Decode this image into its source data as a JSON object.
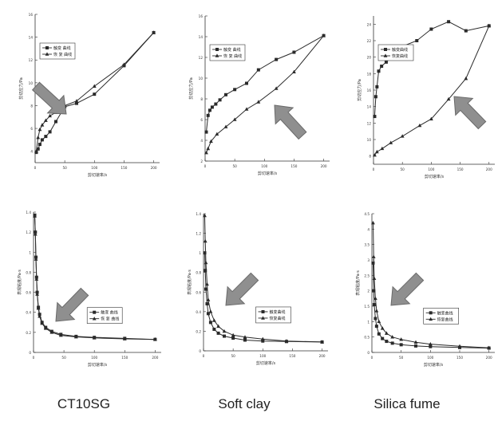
{
  "captions": [
    "CT10SG",
    "Soft clay",
    "Silica fume"
  ],
  "colors": {
    "curve": "#2a2a2a",
    "axis": "#333333",
    "arrow": "#8f8f8f",
    "arrow_edge": "#6a6a6a"
  },
  "chart_data": [
    {
      "type": "line",
      "xlabel": "剪切速率/s",
      "ylabel": "剪切应力/Pa",
      "xlim": [
        0,
        210
      ],
      "ylim": [
        3,
        16
      ],
      "xticks": [
        0,
        50,
        100,
        150,
        200
      ],
      "yticks": [
        4,
        6,
        8,
        10,
        12,
        14,
        16
      ],
      "legend": "top-left",
      "series": [
        {
          "name": "触变 曲线",
          "marker": "square",
          "x": [
            2,
            5,
            8,
            12,
            18,
            25,
            35,
            50,
            70,
            100,
            150,
            200
          ],
          "y": [
            3.9,
            4.2,
            4.6,
            5.0,
            5.3,
            5.7,
            6.6,
            7.9,
            8.2,
            9.0,
            11.5,
            14.4
          ]
        },
        {
          "name": "恢 复 曲线",
          "marker": "triangle",
          "x": [
            2,
            5,
            8,
            12,
            18,
            25,
            35,
            50,
            70,
            100,
            150,
            200
          ],
          "y": [
            4.0,
            5.2,
            5.9,
            6.3,
            6.7,
            7.1,
            7.4,
            8.0,
            8.4,
            9.7,
            11.6,
            14.4
          ]
        }
      ]
    },
    {
      "type": "line",
      "xlabel": "剪切速率/s",
      "ylabel": "剪切应力/Pa",
      "xlim": [
        0,
        210
      ],
      "ylim": [
        2,
        16
      ],
      "xticks": [
        0,
        50,
        100,
        150,
        200
      ],
      "yticks": [
        2,
        4,
        6,
        8,
        10,
        12,
        14,
        16
      ],
      "legend": "top-left",
      "series": [
        {
          "name": "触变 曲线",
          "marker": "square",
          "x": [
            2,
            5,
            8,
            12,
            18,
            25,
            35,
            50,
            70,
            90,
            120,
            150,
            200
          ],
          "y": [
            4.8,
            6.4,
            6.9,
            7.2,
            7.5,
            7.9,
            8.4,
            8.9,
            9.5,
            10.8,
            11.8,
            12.5,
            14.1
          ]
        },
        {
          "name": "恢 复 曲线",
          "marker": "triangle",
          "x": [
            2,
            5,
            10,
            20,
            35,
            50,
            70,
            90,
            120,
            150,
            200
          ],
          "y": [
            2.8,
            3.2,
            3.9,
            4.6,
            5.3,
            6.0,
            7.0,
            7.7,
            9.0,
            10.6,
            14.1
          ]
        }
      ]
    },
    {
      "type": "line",
      "xlabel": "剪切速率/s",
      "ylabel": "剪切应力/Pa",
      "xlim": [
        0,
        210
      ],
      "ylim": [
        7,
        25
      ],
      "xticks": [
        0,
        50,
        100,
        150,
        200
      ],
      "yticks": [
        8,
        10,
        12,
        14,
        16,
        18,
        20,
        22,
        24
      ],
      "legend": "top-left",
      "series": [
        {
          "name": "触变曲线",
          "marker": "square",
          "x": [
            2,
            4,
            6,
            9,
            14,
            22,
            35,
            50,
            75,
            100,
            130,
            160,
            200
          ],
          "y": [
            12.8,
            15.2,
            16.4,
            18.3,
            18.9,
            19.4,
            20.2,
            21.3,
            22.0,
            23.4,
            24.3,
            23.2,
            23.8
          ]
        },
        {
          "name": "恢复曲线",
          "marker": "triangle",
          "x": [
            2,
            6,
            15,
            30,
            50,
            80,
            100,
            130,
            160,
            200
          ],
          "y": [
            8.1,
            8.5,
            8.9,
            9.6,
            10.4,
            11.7,
            12.5,
            14.9,
            17.4,
            23.8
          ]
        }
      ]
    },
    {
      "type": "line",
      "xlabel": "剪切速率/s",
      "ylabel": "表观粘度/Pa·s",
      "xlim": [
        0,
        210
      ],
      "ylim": [
        0,
        1.4
      ],
      "xticks": [
        0,
        50,
        100,
        150,
        200
      ],
      "yticks": [
        0.0,
        0.2,
        0.4,
        0.6,
        0.8,
        1.0,
        1.2,
        1.4
      ],
      "legend": "center-right",
      "series": [
        {
          "name": "触变 曲线",
          "marker": "square",
          "x": [
            2,
            3,
            4,
            5,
            6,
            8,
            10,
            14,
            20,
            30,
            45,
            70,
            100,
            150,
            200
          ],
          "y": [
            1.37,
            1.2,
            0.95,
            0.75,
            0.6,
            0.45,
            0.38,
            0.3,
            0.25,
            0.21,
            0.18,
            0.16,
            0.15,
            0.14,
            0.13
          ]
        },
        {
          "name": "恢 复 曲线",
          "marker": "triangle",
          "x": [
            2,
            3,
            4,
            5,
            6,
            8,
            10,
            14,
            20,
            30,
            45,
            70,
            100,
            150,
            200
          ],
          "y": [
            1.36,
            1.18,
            0.93,
            0.73,
            0.58,
            0.44,
            0.36,
            0.29,
            0.24,
            0.2,
            0.17,
            0.155,
            0.145,
            0.135,
            0.13
          ]
        }
      ]
    },
    {
      "type": "line",
      "xlabel": "剪切速率/s",
      "ylabel": "表观粘度/Pa·s",
      "xlim": [
        0,
        210
      ],
      "ylim": [
        0,
        1.4
      ],
      "xticks": [
        0,
        50,
        100,
        150,
        200
      ],
      "yticks": [
        0.0,
        0.2,
        0.4,
        0.6,
        0.8,
        1.0,
        1.2,
        1.4
      ],
      "legend": "center-right",
      "series": [
        {
          "name": "触变曲线",
          "marker": "square",
          "x": [
            2,
            3,
            4,
            6,
            8,
            12,
            18,
            25,
            35,
            50,
            70,
            100,
            140,
            200
          ],
          "y": [
            1.0,
            0.82,
            0.63,
            0.48,
            0.38,
            0.29,
            0.22,
            0.18,
            0.15,
            0.13,
            0.11,
            0.1,
            0.095,
            0.09
          ]
        },
        {
          "name": "恢复曲线",
          "marker": "triangle",
          "x": [
            2,
            3,
            4,
            6,
            8,
            12,
            18,
            25,
            35,
            50,
            70,
            100,
            140,
            200
          ],
          "y": [
            1.38,
            1.12,
            0.9,
            0.68,
            0.52,
            0.4,
            0.31,
            0.25,
            0.2,
            0.16,
            0.14,
            0.12,
            0.1,
            0.09
          ]
        }
      ]
    },
    {
      "type": "line",
      "xlabel": "剪切速率/s",
      "ylabel": "表观粘度/Pa·s",
      "xlim": [
        0,
        210
      ],
      "ylim": [
        0,
        4.5
      ],
      "xticks": [
        0,
        50,
        100,
        150,
        200
      ],
      "yticks": [
        0.0,
        0.5,
        1.0,
        1.5,
        2.0,
        2.5,
        3.0,
        3.5,
        4.0,
        4.5
      ],
      "legend": "center-right",
      "series": [
        {
          "name": "触变曲线",
          "marker": "square",
          "x": [
            2,
            3,
            4,
            6,
            8,
            12,
            18,
            25,
            35,
            50,
            75,
            100,
            150,
            200
          ],
          "y": [
            2.9,
            2.0,
            1.55,
            1.1,
            0.85,
            0.6,
            0.45,
            0.36,
            0.3,
            0.25,
            0.21,
            0.19,
            0.16,
            0.14
          ]
        },
        {
          "name": "恢复曲线",
          "marker": "triangle",
          "x": [
            2,
            3,
            4,
            6,
            8,
            12,
            18,
            25,
            35,
            50,
            75,
            100,
            150,
            200
          ],
          "y": [
            4.2,
            3.1,
            2.4,
            1.75,
            1.35,
            1.0,
            0.78,
            0.62,
            0.5,
            0.42,
            0.33,
            0.27,
            0.2,
            0.15
          ]
        }
      ]
    }
  ]
}
